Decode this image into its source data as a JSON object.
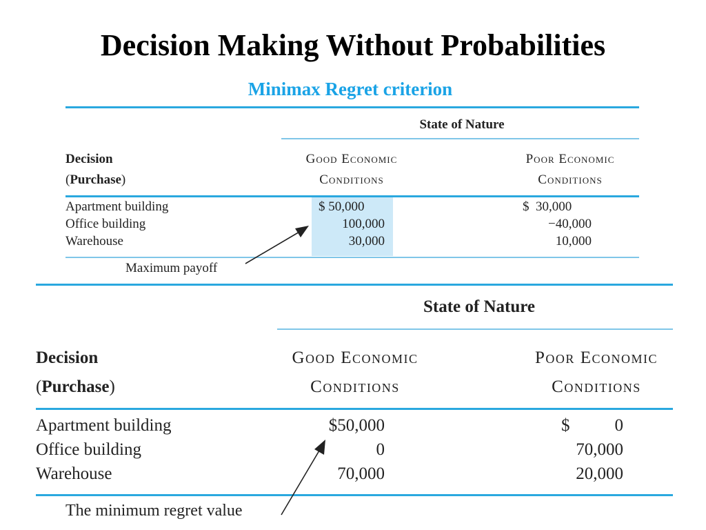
{
  "slide": {
    "title": "Decision Making Without Probabilities",
    "subtitle": "Minimax Regret criterion"
  },
  "colors": {
    "rule": "#2aa8df",
    "subtitle": "#1aa3e6",
    "highlight": "#cde9f8"
  },
  "payoff_table": {
    "state_header": "State of Nature",
    "decision_header_line1": "Decision",
    "decision_header_open": "(",
    "decision_header_bold": "Purchase",
    "decision_header_close": ")",
    "col1_line1": "Good Economic",
    "col1_line2": "Conditions",
    "col2_line1": "Poor Economic",
    "col2_line2": "Conditions",
    "rows": [
      {
        "label": "Apartment building",
        "good": "$ 50,000",
        "poor": "$  30,000"
      },
      {
        "label": "Office building",
        "good": "100,000",
        "poor": "−40,000"
      },
      {
        "label": "Warehouse",
        "good": "30,000",
        "poor": "10,000"
      }
    ],
    "annotation": "Maximum payoff"
  },
  "regret_table": {
    "state_header": "State of Nature",
    "decision_header_line1": "Decision",
    "decision_header_open": "(",
    "decision_header_bold": "Purchase",
    "decision_header_close": ")",
    "col1_line1": "Good Economic",
    "col1_line2": "Conditions",
    "col2_line1": "Poor Economic",
    "col2_line2": "Conditions",
    "rows": [
      {
        "label": "Apartment building",
        "good": "$50,000",
        "poor_sign": "$",
        "poor": "0"
      },
      {
        "label": "Office building",
        "good": "0",
        "poor_sign": "",
        "poor": "70,000"
      },
      {
        "label": "Warehouse",
        "good": "70,000",
        "poor_sign": "",
        "poor": "20,000"
      }
    ],
    "annotation": "The minimum regret value"
  }
}
